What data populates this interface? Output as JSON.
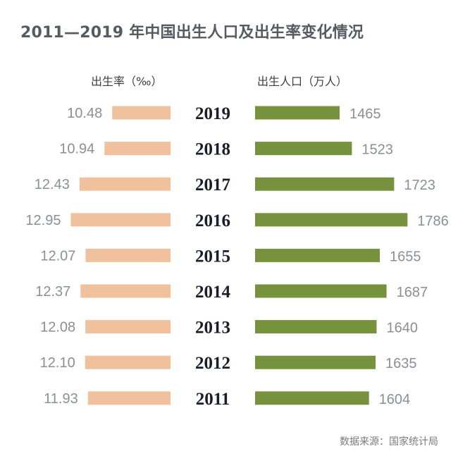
{
  "title": "2011—2019 年中国出生人口及出生率变化情况",
  "source": "数据来源：国家统计局",
  "colors": {
    "rate_bar": "#f0c19c",
    "pop_bar": "#76923c",
    "value_text": "#8a8f96",
    "year_text": "#1a1d2b"
  },
  "chart_data": {
    "type": "bar",
    "title": "2011—2019 年中国出生人口及出生率变化情况",
    "categories": [
      "2019",
      "2018",
      "2017",
      "2016",
      "2015",
      "2014",
      "2013",
      "2012",
      "2011"
    ],
    "series": [
      {
        "name": "出生率（‰）",
        "values": [
          "10.48",
          "10.94",
          "12.43",
          "12.95",
          "12.07",
          "12.37",
          "12.08",
          "12.10",
          "11.93"
        ]
      },
      {
        "name": "出生人口（万人）",
        "values": [
          "1465",
          "1523",
          "1723",
          "1786",
          "1655",
          "1687",
          "1640",
          "1635",
          "1604"
        ]
      }
    ],
    "grid": false,
    "legend": "top"
  }
}
